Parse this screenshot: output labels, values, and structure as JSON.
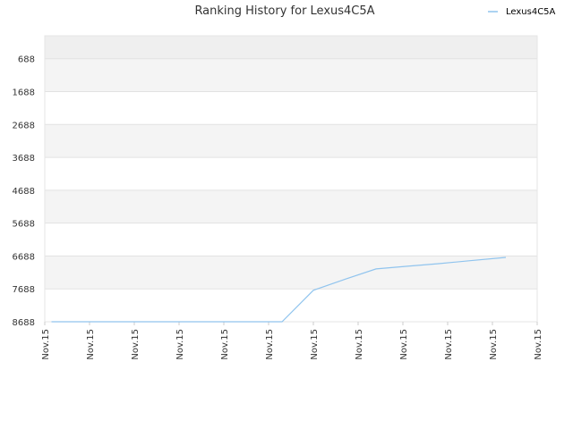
{
  "chart_data": {
    "type": "line",
    "title": "Ranking History for Lexus4C5A",
    "xlabel": "",
    "ylabel": "",
    "y_inverted": true,
    "ylim": [
      8688,
      -12
    ],
    "y_ticks": [
      "688",
      "1688",
      "2688",
      "3688",
      "4688",
      "5688",
      "6688",
      "7688",
      "8688"
    ],
    "x_ticks": [
      "Nov.15",
      "Nov.15",
      "Nov.15",
      "Nov.15",
      "Nov.15",
      "Nov.15",
      "Nov.15",
      "Nov.15",
      "Nov.15",
      "Nov.15",
      "Nov.15",
      "Nov.15"
    ],
    "legend": {
      "position": "top-right"
    },
    "grid": true,
    "series": [
      {
        "name": "Lexus4C5A",
        "color": "#90c4ee",
        "x": [
          0.15,
          0.9,
          1.7,
          2.5,
          3.3,
          4.1,
          4.9,
          5.3,
          6.0,
          6.7,
          7.4,
          8.1,
          8.8,
          9.5,
          10.3
        ],
        "values": [
          8688,
          8688,
          8688,
          8688,
          8688,
          8688,
          8688,
          8688,
          7730,
          7400,
          7080,
          7000,
          6920,
          6830,
          6730
        ]
      }
    ]
  }
}
